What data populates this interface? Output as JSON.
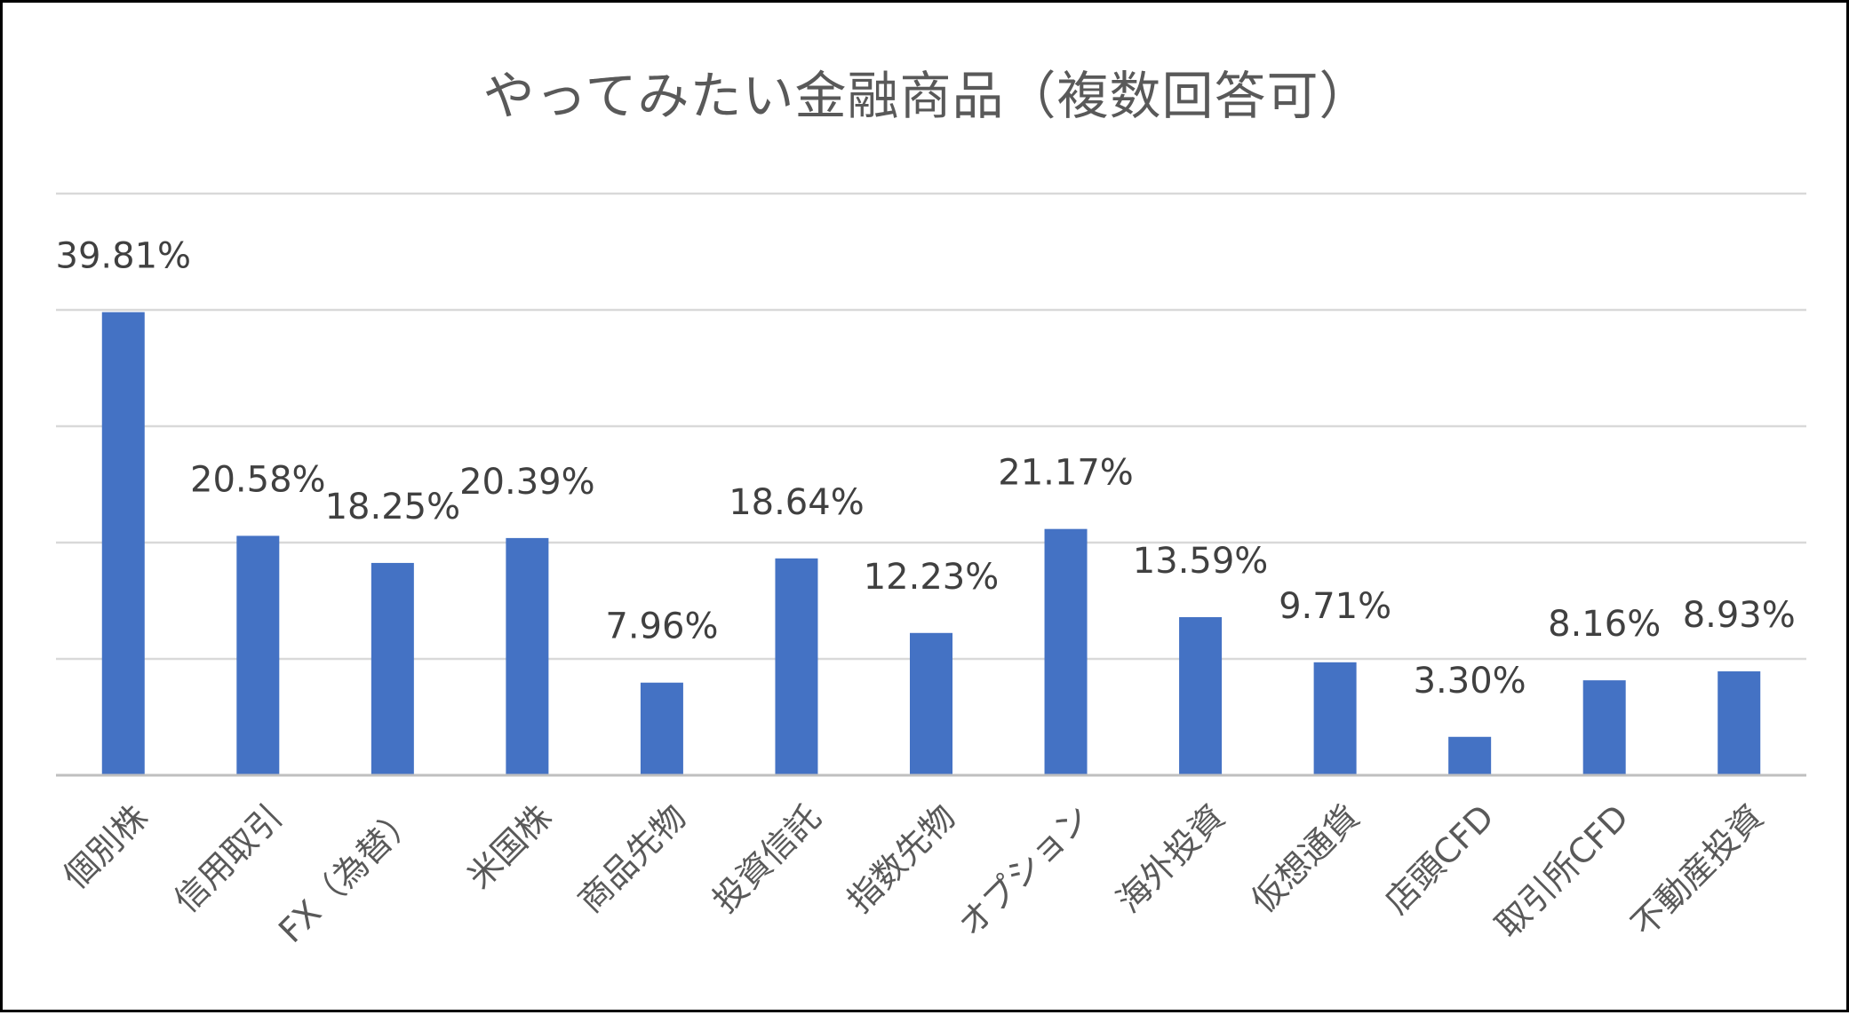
{
  "chart_data": {
    "type": "bar",
    "title": "やってみたい金融商品（複数回答可）",
    "categories": [
      "個別株",
      "信用取引",
      "FX（為替）",
      "米国株",
      "商品先物",
      "投資信託",
      "指数先物",
      "オプション",
      "海外投資",
      "仮想通貨",
      "店頭CFD",
      "取引所CFD",
      "不動産投資"
    ],
    "values": [
      39.81,
      20.58,
      18.25,
      20.39,
      7.96,
      18.64,
      12.23,
      21.17,
      13.59,
      9.71,
      3.3,
      8.16,
      8.93
    ],
    "data_labels": [
      "39.81%",
      "20.58%",
      "18.25%",
      "20.39%",
      "7.96%",
      "18.64%",
      "12.23%",
      "21.17%",
      "13.59%",
      "9.71%",
      "3.30%",
      "8.16%",
      "8.93%"
    ],
    "xlabel": "",
    "ylabel": "",
    "ylim": [
      0,
      50
    ],
    "y_grid_step": 10,
    "y_tick_labels_shown": false,
    "grid": true,
    "legend": "none",
    "colors": {
      "bar": "#4472c4",
      "grid": "#d9d9d9",
      "text": "#595959",
      "frame": "#000000"
    }
  }
}
